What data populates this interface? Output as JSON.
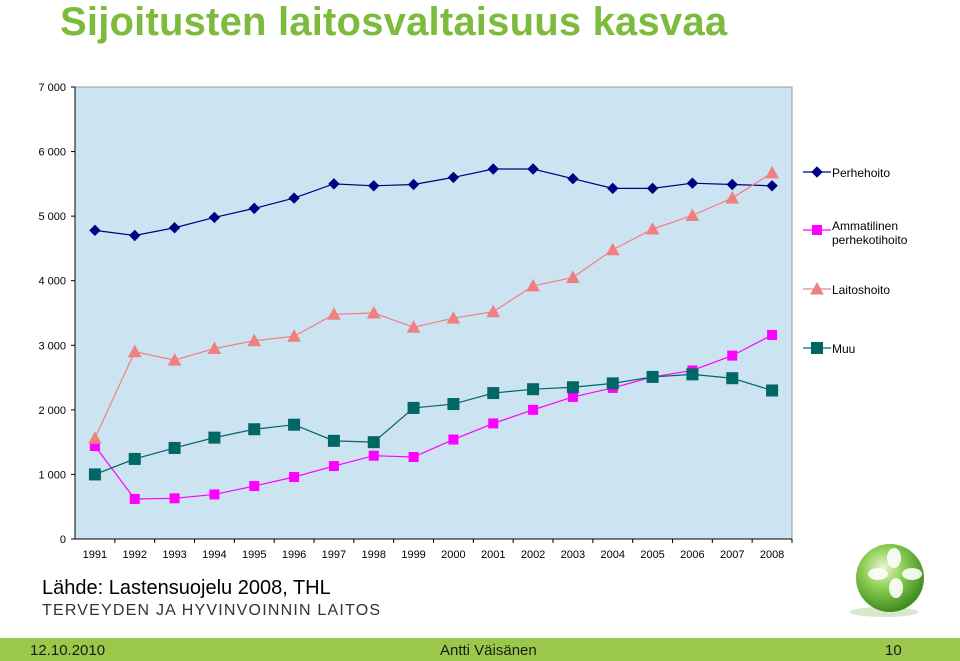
{
  "slide": {
    "title": "Sijoitusten laitosvaltaisuus kasvaa",
    "source": "Lähde: Lastensuojelu 2008, THL",
    "org": "TERVEYDEN JA HYVINVOINNIN LAITOS",
    "footer": {
      "date": "12.10.2010",
      "author": "Antti Väisänen",
      "page": "10"
    }
  },
  "colors": {
    "title": "#7dbb3d",
    "plot_bg": "#cce3f1",
    "footer_bg": "#9bc84a",
    "logo": "#7fc34a"
  },
  "chart_data": {
    "type": "line",
    "x": [
      "1991",
      "1992",
      "1993",
      "1994",
      "1995",
      "1996",
      "1997",
      "1998",
      "1999",
      "2000",
      "2001",
      "2002",
      "2003",
      "2004",
      "2005",
      "2006",
      "2007",
      "2008"
    ],
    "ylim": [
      0,
      7000
    ],
    "yticks": [
      0,
      1000,
      2000,
      3000,
      4000,
      5000,
      6000,
      7000
    ],
    "ytick_labels": [
      "0",
      "1 000",
      "2 000",
      "3 000",
      "4 000",
      "5 000",
      "6 000",
      "7 000"
    ],
    "grid": false,
    "legend_position": "right",
    "series": [
      {
        "name": "Perhehoito",
        "color": "#000080",
        "marker": "diamond",
        "values": [
          4780,
          4700,
          4820,
          4980,
          5120,
          5280,
          5500,
          5470,
          5490,
          5600,
          5730,
          5730,
          5580,
          5430,
          5430,
          5510,
          5490,
          5470
        ]
      },
      {
        "name": "Ammatilinen perhekotihoito",
        "name_lines": [
          "Ammatilinen",
          "perhekotihoito"
        ],
        "color": "#ff00ff",
        "marker": "square",
        "values": [
          1440,
          620,
          630,
          690,
          820,
          960,
          1130,
          1290,
          1270,
          1540,
          1790,
          2000,
          2200,
          2340,
          2510,
          2610,
          2840,
          3160
        ]
      },
      {
        "name": "Laitoshoito",
        "color": "#f08080",
        "marker": "triangle",
        "values": [
          1560,
          2900,
          2770,
          2950,
          3070,
          3140,
          3480,
          3500,
          3280,
          3420,
          3520,
          3920,
          4050,
          4480,
          4800,
          5010,
          5280,
          5670
        ]
      },
      {
        "name": "Muu",
        "color": "#006666",
        "marker": "square",
        "values": [
          1000,
          1240,
          1410,
          1570,
          1700,
          1770,
          1520,
          1500,
          2030,
          2090,
          2260,
          2320,
          2350,
          2410,
          2510,
          2550,
          2490,
          2300
        ]
      }
    ]
  }
}
